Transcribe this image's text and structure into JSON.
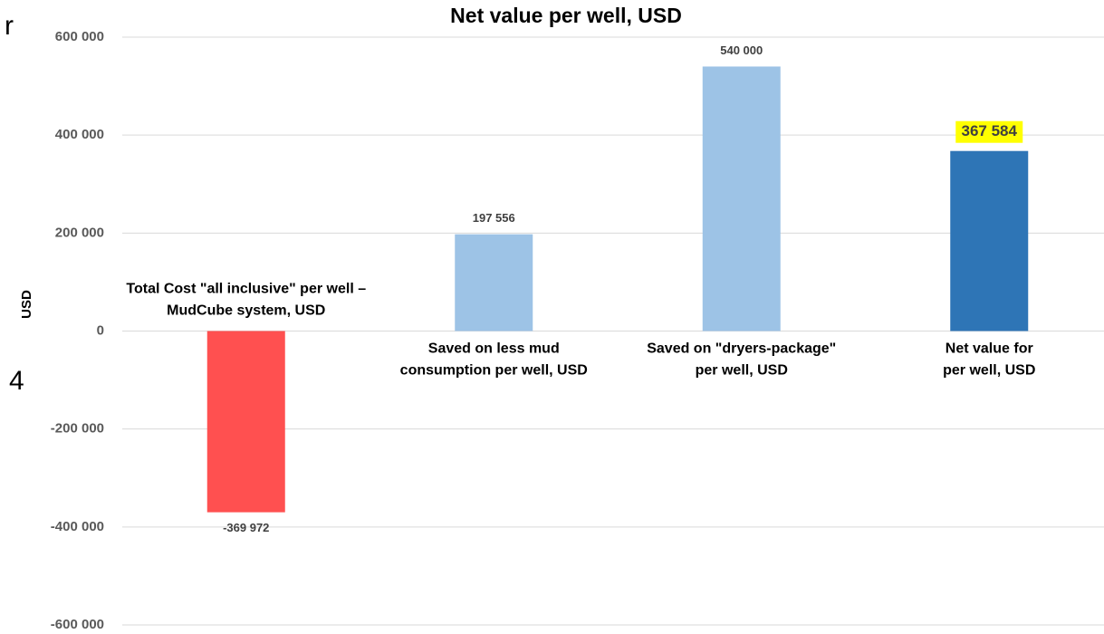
{
  "side_text": [
    "r",
    "4"
  ],
  "chart_data": {
    "type": "bar",
    "title": "Net value per well, USD",
    "y_label": "USD",
    "categories": [
      "Total Cost \"all inclusive\" per well –\nMudCube system, USD",
      "Saved on less mud\nconsumption  per well, USD",
      "Saved on \"dryers-package\"\nper well, USD",
      "Net value for\nper well, USD"
    ],
    "values": [
      -369972,
      197556,
      540000,
      367584
    ],
    "value_labels": [
      "-369 972",
      "197 556",
      "540 000",
      "367 584"
    ],
    "colors": [
      "#ff5050",
      "#9dc3e6",
      "#9dc3e6",
      "#2e75b6"
    ],
    "highlight_index": 3,
    "highlight_color": "#ffff00",
    "ylim": [
      -600000,
      600000
    ],
    "yticks": [
      {
        "value": -600000,
        "label": "-600 000"
      },
      {
        "value": -400000,
        "label": "-400 000"
      },
      {
        "value": -200000,
        "label": "-200 000"
      },
      0,
      {
        "value": 200000,
        "label": "200 000"
      },
      {
        "value": 400000,
        "label": "400 000"
      },
      {
        "value": 600000,
        "label": "600 000"
      }
    ],
    "grid": true
  }
}
